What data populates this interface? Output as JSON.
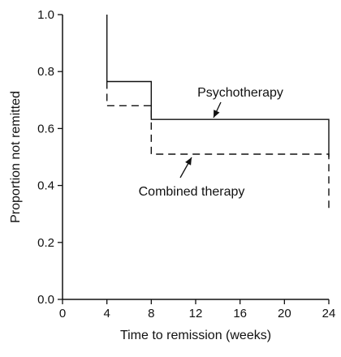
{
  "chart_data": {
    "type": "line",
    "subtype": "step",
    "title": "",
    "xlabel": "Time to remission (weeks)",
    "ylabel": "Proportion not remitted",
    "xlim": [
      0,
      24
    ],
    "ylim": [
      0,
      1.0
    ],
    "x_ticks": [
      0,
      4,
      8,
      12,
      16,
      20,
      24
    ],
    "y_ticks": [
      0,
      0.2,
      0.4,
      0.6,
      0.8,
      1.0
    ],
    "y_tick_labels": [
      "0.0",
      "0.2",
      "0.4",
      "0.6",
      "0.8",
      "1.0"
    ],
    "grid": false,
    "series": [
      {
        "name": "Psychotherapy",
        "line_style": "solid",
        "color": "#111111",
        "x": [
          4,
          4,
          8,
          8,
          24,
          24
        ],
        "y": [
          1.0,
          0.765,
          0.765,
          0.632,
          0.632,
          0.5
        ]
      },
      {
        "name": "Combined therapy",
        "line_style": "dashed",
        "color": "#111111",
        "x": [
          4,
          4,
          8,
          8,
          24,
          24
        ],
        "y": [
          0.765,
          0.68,
          0.68,
          0.51,
          0.51,
          0.31
        ]
      }
    ],
    "annotations": [
      {
        "text": "Psychotherapy",
        "series": "Psychotherapy",
        "point_x": 13,
        "point_y": 0.632
      },
      {
        "text": "Combined therapy",
        "series": "Combined therapy",
        "point_x": 11.2,
        "point_y": 0.51
      }
    ]
  }
}
